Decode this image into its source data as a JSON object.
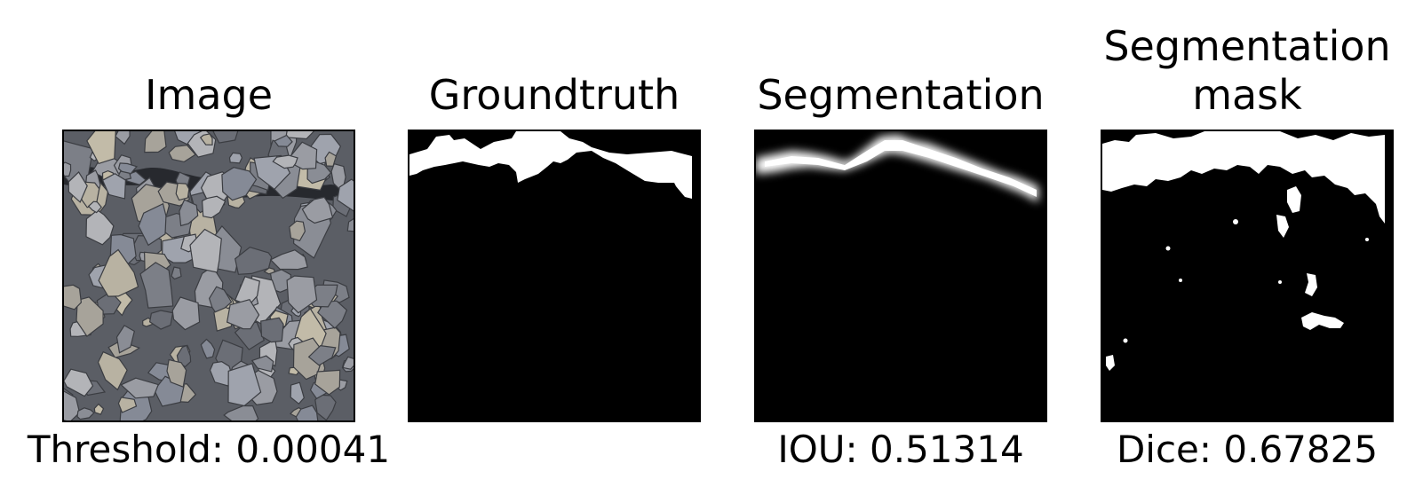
{
  "panels": [
    {
      "title": "Image",
      "caption": "Threshold: 0.00041"
    },
    {
      "title": "Groundtruth",
      "caption": ""
    },
    {
      "title": "Segmentation",
      "caption": "IOU: 0.51314"
    },
    {
      "title": "Segmentation\nmask",
      "title_lines": [
        "Segmentation",
        "mask"
      ],
      "caption": "Dice: 0.67825"
    }
  ],
  "colors": {
    "background": "#ffffff",
    "mask_fg": "#ffffff",
    "mask_bg": "#000000",
    "rock_base": "#6e7178"
  }
}
